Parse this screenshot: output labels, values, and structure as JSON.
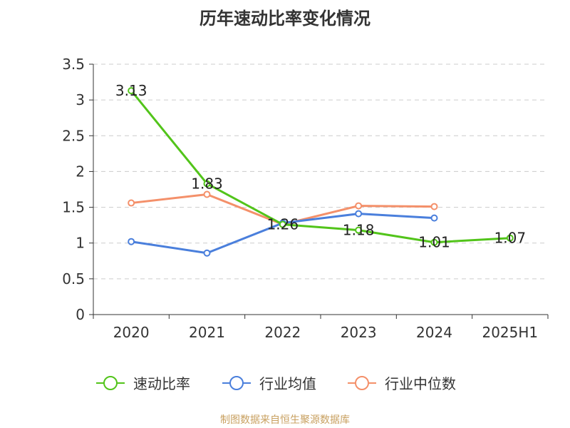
{
  "chart_data": {
    "type": "line",
    "title": "历年速动比率变化情况",
    "categories": [
      "2020",
      "2021",
      "2022",
      "2023",
      "2024",
      "2025H1"
    ],
    "y_ticks": [
      "0",
      "0.5",
      "1",
      "1.5",
      "2",
      "2.5",
      "3",
      "3.5"
    ],
    "ylim": [
      0,
      3.5
    ],
    "grid": true,
    "legend_position": "bottom",
    "series": [
      {
        "name": "速动比率",
        "color": "#52c41a",
        "values": [
          3.13,
          1.83,
          1.26,
          1.18,
          1.01,
          1.07
        ],
        "labels": [
          "3.13",
          "1.83",
          "1.26",
          "1.18",
          "1.01",
          "1.07"
        ]
      },
      {
        "name": "行业均值",
        "color": "#4a7fdc",
        "values": [
          1.02,
          0.86,
          1.28,
          1.41,
          1.35,
          null
        ]
      },
      {
        "name": "行业中位数",
        "color": "#f4906a",
        "values": [
          1.56,
          1.68,
          1.26,
          1.52,
          1.51,
          null
        ]
      }
    ],
    "source": "制图数据来自恒生聚源数据库"
  }
}
